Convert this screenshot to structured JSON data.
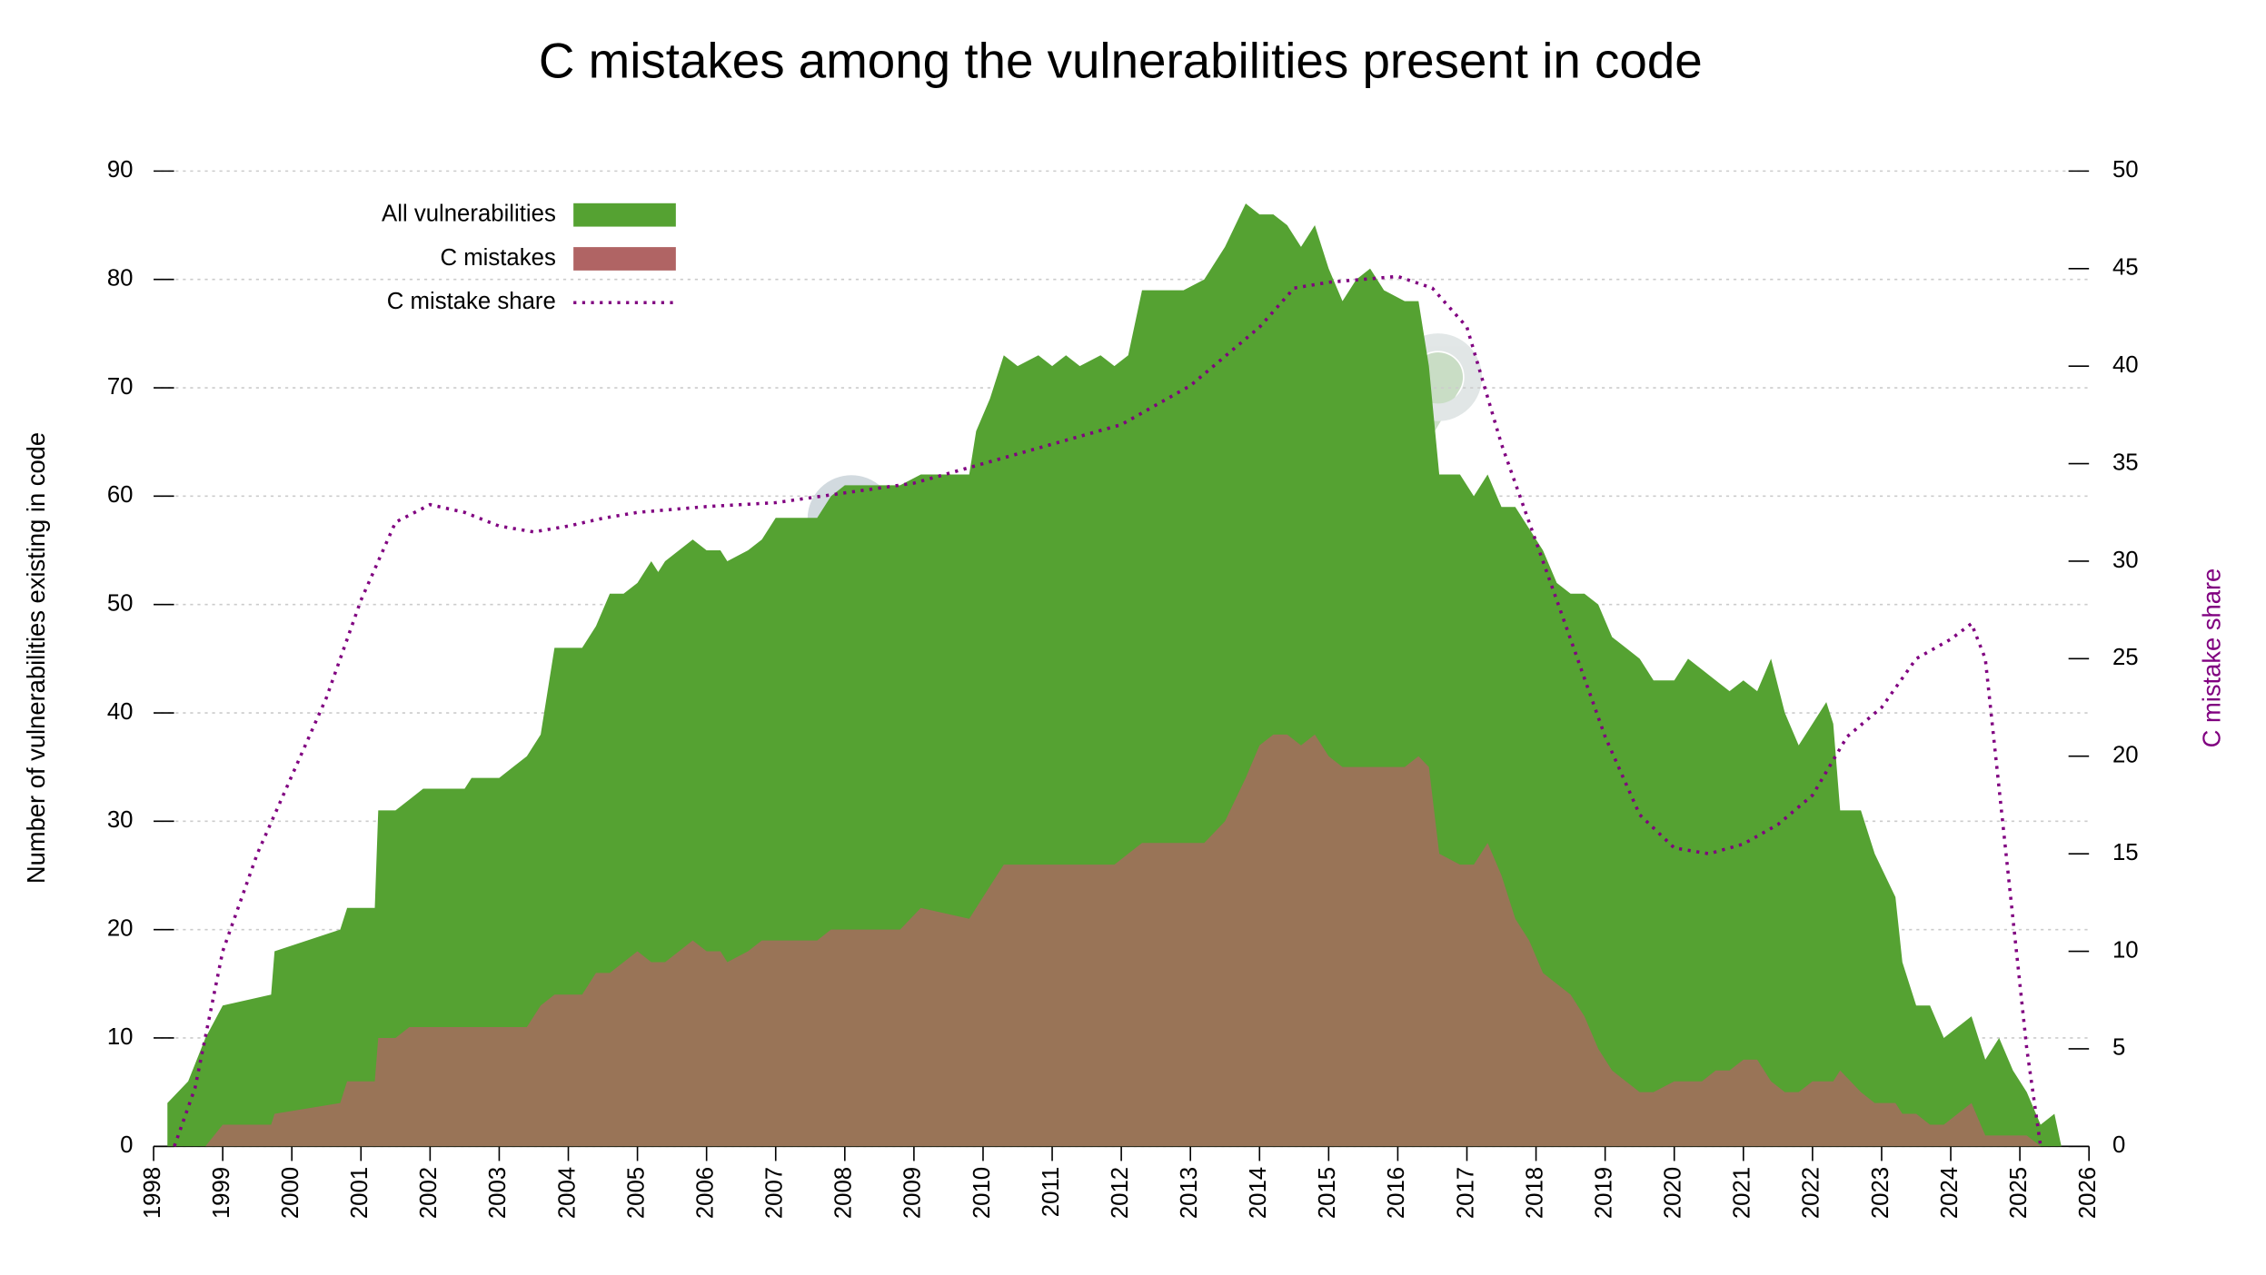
{
  "chart_data": {
    "type": "area",
    "title": "C mistakes among the vulnerabilities present in code",
    "ylabel": "Number of vulnerabilities existing in code",
    "y2label": "C mistake share",
    "legend": "upper left",
    "grid": true,
    "xlim": [
      1998,
      2026
    ],
    "xticks": [
      1998,
      1999,
      2000,
      2001,
      2002,
      2003,
      2004,
      2005,
      2006,
      2007,
      2008,
      2009,
      2010,
      2011,
      2012,
      2013,
      2014,
      2015,
      2016,
      2017,
      2018,
      2019,
      2020,
      2021,
      2022,
      2023,
      2024,
      2025,
      2026
    ],
    "ylim": [
      0,
      90
    ],
    "yticks": [
      0,
      10,
      20,
      30,
      40,
      50,
      60,
      70,
      80,
      90
    ],
    "y2lim": [
      0,
      50
    ],
    "y2ticks": [
      0,
      5,
      10,
      15,
      20,
      25,
      30,
      35,
      40,
      45,
      50
    ],
    "x": [
      1998.2,
      1998.5,
      1998.75,
      1999.0,
      1999.7,
      1999.75,
      2000.7,
      2000.8,
      2001.2,
      2001.25,
      2001.5,
      2001.7,
      2001.9,
      2002.3,
      2002.5,
      2002.6,
      2003.0,
      2003.2,
      2003.4,
      2003.6,
      2003.8,
      2004.2,
      2004.4,
      2004.6,
      2004.8,
      2005.0,
      2005.2,
      2005.3,
      2005.4,
      2005.8,
      2006.0,
      2006.2,
      2006.3,
      2006.6,
      2006.8,
      2007.0,
      2007.6,
      2007.8,
      2008.0,
      2008.8,
      2009.1,
      2009.8,
      2009.9,
      2010.1,
      2010.3,
      2010.5,
      2010.8,
      2011.0,
      2011.2,
      2011.4,
      2011.7,
      2011.9,
      2012.1,
      2012.3,
      2012.9,
      2013.2,
      2013.5,
      2013.8,
      2014.0,
      2014.2,
      2014.4,
      2014.6,
      2014.8,
      2015.0,
      2015.2,
      2015.4,
      2015.6,
      2015.8,
      2016.1,
      2016.3,
      2016.45,
      2016.6,
      2016.9,
      2017.1,
      2017.3,
      2017.5,
      2017.7,
      2017.9,
      2018.1,
      2018.3,
      2018.5,
      2018.7,
      2018.9,
      2019.1,
      2019.3,
      2019.5,
      2019.7,
      2020.0,
      2020.2,
      2020.4,
      2020.6,
      2020.8,
      2021.0,
      2021.2,
      2021.4,
      2021.6,
      2021.8,
      2022.0,
      2022.2,
      2022.3,
      2022.4,
      2022.7,
      2022.9,
      2023.2,
      2023.3,
      2023.5,
      2023.7,
      2023.9,
      2024.1,
      2024.3,
      2024.5,
      2024.7,
      2024.9,
      2025.1,
      2025.3,
      2025.5,
      2025.6
    ],
    "series": [
      {
        "name": "All vulnerabilities",
        "color": "#55a232",
        "values": [
          4,
          6,
          10,
          13,
          14,
          18,
          20,
          22,
          22,
          31,
          31,
          32,
          33,
          33,
          33,
          34,
          34,
          35,
          36,
          38,
          46,
          46,
          48,
          51,
          51,
          52,
          54,
          53,
          54,
          56,
          55,
          55,
          54,
          55,
          56,
          58,
          58,
          60,
          61,
          61,
          62,
          62,
          66,
          69,
          73,
          72,
          73,
          72,
          73,
          72,
          73,
          72,
          73,
          79,
          79,
          80,
          83,
          87,
          86,
          86,
          85,
          83,
          85,
          81,
          78,
          80,
          81,
          79,
          78,
          78,
          72,
          62,
          62,
          60,
          62,
          59,
          59,
          57,
          55,
          52,
          51,
          51,
          50,
          47,
          46,
          45,
          43,
          43,
          45,
          44,
          43,
          42,
          43,
          42,
          45,
          40,
          37,
          39,
          41,
          39,
          31,
          31,
          27,
          23,
          17,
          13,
          13,
          10,
          11,
          12,
          8,
          10,
          7,
          5,
          2,
          3,
          0
        ]
      },
      {
        "name": "C mistakes",
        "color": "#b06464",
        "values": [
          0,
          0,
          0,
          2,
          2,
          3,
          4,
          6,
          6,
          10,
          10,
          11,
          11,
          11,
          11,
          11,
          11,
          11,
          11,
          13,
          14,
          14,
          16,
          16,
          17,
          18,
          17,
          17,
          17,
          19,
          18,
          18,
          17,
          18,
          19,
          19,
          19,
          20,
          20,
          20,
          22,
          21,
          22,
          24,
          26,
          26,
          26,
          26,
          26,
          26,
          26,
          26,
          27,
          28,
          28,
          28,
          30,
          34,
          37,
          38,
          38,
          37,
          38,
          36,
          35,
          35,
          35,
          35,
          35,
          36,
          35,
          27,
          26,
          26,
          28,
          25,
          21,
          19,
          16,
          15,
          14,
          12,
          9,
          7,
          6,
          5,
          5,
          6,
          6,
          6,
          7,
          7,
          8,
          8,
          6,
          5,
          5,
          6,
          6,
          6,
          7,
          5,
          4,
          4,
          3,
          3,
          2,
          2,
          3,
          4,
          1,
          1,
          1,
          1,
          0,
          0,
          0
        ]
      },
      {
        "name": "C mistake share",
        "color": "#800080",
        "axis": "y2",
        "dash": true,
        "x": [
          1998.3,
          1998.6,
          1999.0,
          1999.5,
          2000.0,
          2000.5,
          2001.0,
          2001.5,
          2002.0,
          2002.5,
          2003.0,
          2003.5,
          2004.0,
          2004.5,
          2005.0,
          2006.0,
          2007.0,
          2008.0,
          2009.0,
          2010.0,
          2011.0,
          2012.0,
          2013.0,
          2014.0,
          2014.5,
          2015.0,
          2016.0,
          2016.5,
          2017.0,
          2017.5,
          2018.0,
          2018.5,
          2019.0,
          2019.5,
          2020.0,
          2020.5,
          2021.0,
          2021.5,
          2022.0,
          2022.5,
          2023.0,
          2023.5,
          2024.0,
          2024.3,
          2024.5,
          2024.8,
          2025.1,
          2025.3
        ],
        "values": [
          0,
          3,
          10,
          15,
          19,
          23,
          28,
          32,
          32.9,
          32.5,
          31.8,
          31.5,
          31.8,
          32.2,
          32.5,
          32.8,
          33,
          33.5,
          34,
          35,
          36,
          37,
          39,
          42,
          44,
          44.3,
          44.6,
          44,
          42,
          36,
          31,
          26,
          21,
          17,
          15.3,
          15,
          15.5,
          16.5,
          18,
          21,
          22.5,
          25,
          26,
          26.8,
          25,
          15,
          5,
          0
        ]
      }
    ]
  }
}
